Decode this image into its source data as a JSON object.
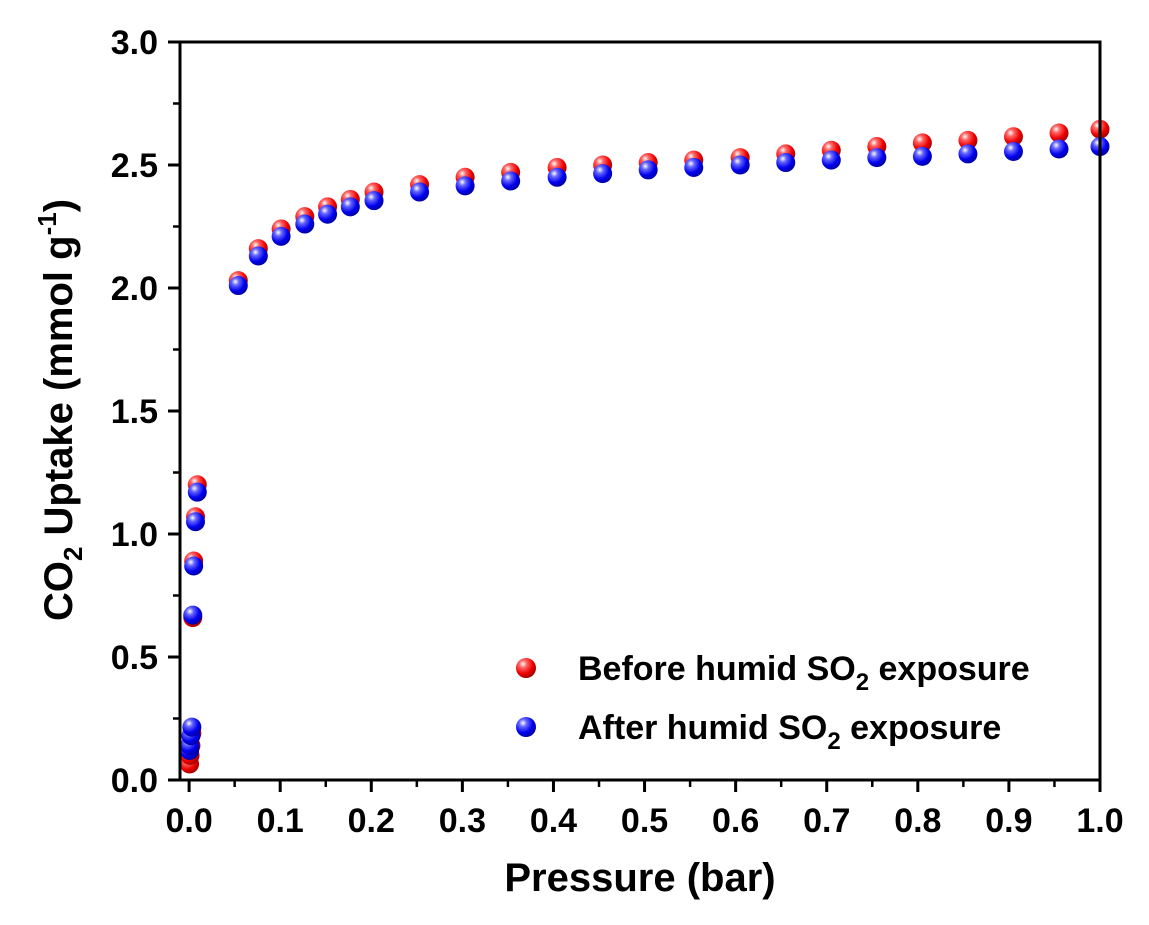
{
  "chart_data": {
    "type": "scatter",
    "title": "",
    "xlabel": "Pressure (bar)",
    "ylabel": {
      "main": "CO",
      "sub": "2",
      "rest": " Uptake (mmol g",
      "sup": "-1",
      "close": ")"
    },
    "xlim": [
      -0.01,
      1.0
    ],
    "ylim": [
      0.0,
      3.0
    ],
    "xticks": [
      "0.0",
      "0.1",
      "0.2",
      "0.3",
      "0.4",
      "0.5",
      "0.6",
      "0.7",
      "0.8",
      "0.9",
      "1.0"
    ],
    "yticks": [
      "0.0",
      "0.5",
      "1.0",
      "1.5",
      "2.0",
      "2.5",
      "3.0"
    ],
    "legend_position": "bottom-right",
    "grid": false,
    "series": [
      {
        "legend": {
          "pre": "Before humid SO",
          "sub": "2",
          "post": " exposure"
        },
        "color": "#ff1a1a",
        "x": [
          0.0005,
          0.001,
          0.002,
          0.003,
          0.004,
          0.005,
          0.007,
          0.009,
          0.054,
          0.076,
          0.101,
          0.127,
          0.152,
          0.177,
          0.203,
          0.253,
          0.303,
          0.353,
          0.404,
          0.454,
          0.504,
          0.554,
          0.605,
          0.655,
          0.705,
          0.755,
          0.805,
          0.855,
          0.905,
          0.955,
          1.0
        ],
        "y": [
          0.065,
          0.1,
          0.14,
          0.19,
          0.66,
          0.89,
          1.07,
          1.2,
          2.03,
          2.16,
          2.24,
          2.29,
          2.33,
          2.36,
          2.39,
          2.42,
          2.45,
          2.47,
          2.49,
          2.5,
          2.51,
          2.52,
          2.53,
          2.545,
          2.56,
          2.575,
          2.59,
          2.6,
          2.615,
          2.63,
          2.645
        ]
      },
      {
        "legend": {
          "pre": "After humid SO",
          "sub": "2",
          "post": " exposure"
        },
        "color": "#1a1aff",
        "x": [
          0.0005,
          0.001,
          0.002,
          0.003,
          0.004,
          0.005,
          0.007,
          0.009,
          0.054,
          0.076,
          0.101,
          0.127,
          0.152,
          0.177,
          0.203,
          0.253,
          0.303,
          0.353,
          0.404,
          0.454,
          0.504,
          0.554,
          0.605,
          0.655,
          0.705,
          0.755,
          0.805,
          0.855,
          0.905,
          0.955,
          1.0
        ],
        "y": [
          0.12,
          0.14,
          0.18,
          0.215,
          0.67,
          0.87,
          1.05,
          1.17,
          2.01,
          2.13,
          2.21,
          2.26,
          2.3,
          2.33,
          2.355,
          2.39,
          2.415,
          2.435,
          2.45,
          2.465,
          2.48,
          2.49,
          2.5,
          2.51,
          2.52,
          2.53,
          2.535,
          2.545,
          2.555,
          2.565,
          2.575
        ]
      }
    ]
  }
}
